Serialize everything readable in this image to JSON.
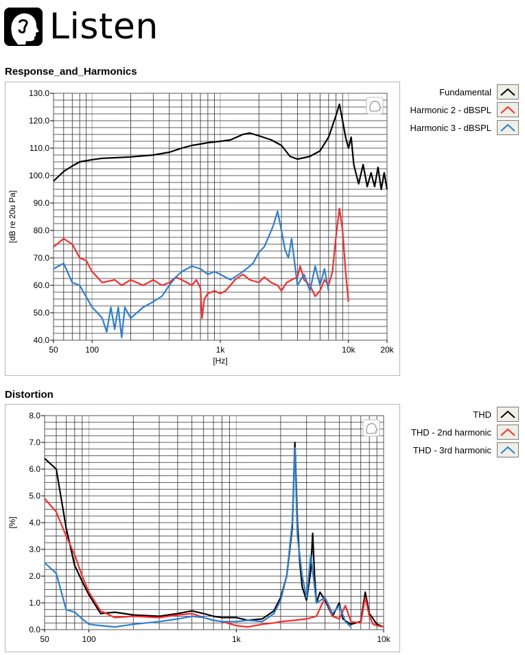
{
  "brand": {
    "name": "Listen"
  },
  "charts": [
    {
      "section_title": "Response_and_Harmonics",
      "legend": [
        {
          "label": "Fundamental",
          "color": "#000000"
        },
        {
          "label": "Harmonic 2 - dBSPL",
          "color": "#ff2a2a"
        },
        {
          "label": "Harmonic 3 - dBSPL",
          "color": "#2a7fd4"
        }
      ]
    },
    {
      "section_title": "Distortion",
      "legend": [
        {
          "label": "THD",
          "color": "#000000"
        },
        {
          "label": "THD - 2nd harmonic",
          "color": "#ff2a2a"
        },
        {
          "label": "THD - 3rd harmonic",
          "color": "#2a7fd4"
        }
      ]
    }
  ],
  "chart_data": [
    {
      "type": "line",
      "title": "Response_and_Harmonics",
      "xlabel": "[Hz]",
      "ylabel": "[dB re 20u Pa]",
      "xscale": "log",
      "xlim": [
        50,
        20000
      ],
      "ylim": [
        40,
        130
      ],
      "xticks": [
        50,
        100,
        1000,
        10000,
        20000
      ],
      "xtick_labels": [
        "50",
        "100",
        "1k",
        "10k",
        "20k"
      ],
      "yticks": [
        40,
        50,
        60,
        70,
        80,
        90,
        100,
        110,
        120,
        130
      ],
      "ytick_labels": [
        "40.0",
        "50.0",
        "60.0",
        "70.0",
        "80.0",
        "90.0",
        "100.0",
        "110.0",
        "120.0",
        "130.0"
      ],
      "grid": true,
      "legend_position": "right",
      "series": [
        {
          "name": "Fundamental",
          "color": "#000000",
          "x": [
            50,
            60,
            70,
            80,
            100,
            120,
            150,
            200,
            300,
            400,
            500,
            600,
            700,
            800,
            1000,
            1200,
            1500,
            1700,
            2000,
            2500,
            3000,
            3500,
            4000,
            4500,
            5000,
            6000,
            7000,
            8000,
            8500,
            9000,
            9500,
            10000,
            10500,
            11000,
            12000,
            13000,
            14000,
            15000,
            16000,
            17000,
            18000,
            19000,
            20000
          ],
          "y": [
            98,
            101.5,
            103.5,
            105,
            105.8,
            106.3,
            106.5,
            106.8,
            107.5,
            108.5,
            110,
            111,
            111.5,
            112,
            112.5,
            113,
            115,
            115.5,
            114.5,
            113,
            111,
            107,
            106,
            106.5,
            107,
            109,
            114,
            122,
            126,
            120,
            114,
            110,
            114,
            104,
            97,
            104,
            96,
            101,
            96,
            103,
            95,
            101,
            95
          ]
        },
        {
          "name": "Harmonic 2 - dBSPL",
          "color": "#ff2a2a",
          "x": [
            50,
            60,
            70,
            80,
            90,
            100,
            120,
            150,
            170,
            200,
            250,
            300,
            350,
            400,
            450,
            500,
            550,
            600,
            650,
            700,
            720,
            750,
            800,
            900,
            1000,
            1100,
            1200,
            1300,
            1500,
            1700,
            2000,
            2200,
            2500,
            2800,
            3000,
            3300,
            3600,
            4000,
            4200,
            4500,
            5000,
            5500,
            6000,
            6500,
            7000,
            7500,
            8000,
            8500,
            9000,
            9500,
            10000
          ],
          "y": [
            74,
            77,
            75,
            70,
            69,
            65,
            61,
            62,
            60,
            62,
            60,
            62,
            60,
            61,
            63,
            62,
            61,
            60,
            62,
            59,
            48,
            55,
            57,
            58,
            57,
            58,
            60,
            62,
            64,
            62,
            61,
            63,
            61,
            60,
            58,
            61,
            62,
            63,
            67,
            62,
            60,
            56,
            58,
            62,
            60,
            65,
            78,
            88,
            80,
            65,
            54
          ]
        },
        {
          "name": "Harmonic 3 - dBSPL",
          "color": "#2a7fd4",
          "x": [
            50,
            60,
            70,
            80,
            100,
            110,
            120,
            130,
            140,
            150,
            160,
            170,
            180,
            200,
            250,
            300,
            350,
            400,
            450,
            500,
            600,
            700,
            800,
            900,
            1000,
            1200,
            1400,
            1600,
            1800,
            2000,
            2200,
            2400,
            2600,
            2800,
            3000,
            3200,
            3400,
            3600,
            4000,
            4500,
            5000,
            5500,
            6000,
            6500,
            7000
          ],
          "y": [
            66,
            68,
            61,
            60,
            52,
            50,
            48,
            43,
            52,
            44,
            52,
            41,
            52,
            48,
            52,
            54,
            56,
            60,
            63,
            65,
            67,
            66,
            64,
            65,
            64,
            62,
            64,
            66,
            68,
            72,
            74,
            78,
            82,
            87,
            80,
            73,
            70,
            77,
            60,
            64,
            58,
            67,
            60,
            66,
            58
          ]
        }
      ]
    },
    {
      "type": "line",
      "title": "Distortion",
      "xlabel": "",
      "ylabel": "[%]",
      "xscale": "log",
      "xlim": [
        50,
        10000
      ],
      "ylim": [
        0,
        8
      ],
      "xticks": [
        50,
        100,
        1000,
        10000
      ],
      "xtick_labels": [
        "50",
        "100",
        "1k",
        "10k"
      ],
      "yticks": [
        0,
        1,
        2,
        3,
        4,
        5,
        6,
        7,
        8
      ],
      "ytick_labels": [
        "0.0",
        "1.0",
        "2.0",
        "3.0",
        "4.0",
        "5.0",
        "6.0",
        "7.0",
        "8.0"
      ],
      "grid": true,
      "legend_position": "right",
      "series": [
        {
          "name": "THD",
          "color": "#000000",
          "x": [
            50,
            60,
            70,
            80,
            90,
            100,
            120,
            150,
            200,
            300,
            400,
            500,
            600,
            700,
            800,
            1000,
            1200,
            1500,
            1800,
            2000,
            2200,
            2400,
            2500,
            2600,
            2700,
            2800,
            3000,
            3200,
            3300,
            3400,
            3500,
            3700,
            4000,
            4500,
            5000,
            5300,
            5600,
            6000,
            7000,
            7500,
            8000,
            8500,
            9000,
            10000
          ],
          "y": [
            6.4,
            6.0,
            3.8,
            2.4,
            1.8,
            1.3,
            0.6,
            0.65,
            0.55,
            0.5,
            0.6,
            0.7,
            0.6,
            0.5,
            0.45,
            0.45,
            0.35,
            0.4,
            0.7,
            1.2,
            2.0,
            3.8,
            7.0,
            4.0,
            2.5,
            1.6,
            1.1,
            2.2,
            3.6,
            2.0,
            1.0,
            1.4,
            1.1,
            0.5,
            1.0,
            0.4,
            0.3,
            0.2,
            0.3,
            1.4,
            0.6,
            0.4,
            0.2,
            0.1
          ]
        },
        {
          "name": "THD - 2nd harmonic",
          "color": "#ff2a2a",
          "x": [
            50,
            60,
            70,
            80,
            90,
            100,
            120,
            150,
            200,
            300,
            400,
            500,
            600,
            700,
            800,
            1000,
            1200,
            1500,
            1800,
            2000,
            2500,
            3000,
            3500,
            4000,
            4500,
            5000,
            5500,
            6000,
            7000,
            7500,
            8000,
            8500,
            9000,
            10000
          ],
          "y": [
            4.9,
            4.4,
            3.5,
            2.8,
            2.0,
            1.4,
            0.7,
            0.45,
            0.5,
            0.45,
            0.55,
            0.6,
            0.45,
            0.35,
            0.3,
            0.15,
            0.1,
            0.2,
            0.25,
            0.3,
            0.35,
            0.4,
            0.5,
            1.2,
            0.5,
            0.4,
            0.9,
            0.3,
            0.25,
            1.2,
            0.5,
            0.2,
            0.15,
            0.1
          ]
        },
        {
          "name": "THD - 3rd harmonic",
          "color": "#2a7fd4",
          "x": [
            50,
            60,
            70,
            80,
            90,
            100,
            120,
            150,
            200,
            300,
            400,
            500,
            600,
            700,
            800,
            1000,
            1200,
            1500,
            1800,
            2000,
            2200,
            2400,
            2500,
            2600,
            2800,
            3000,
            3200,
            3500,
            4000,
            4500,
            5000,
            5500,
            6000
          ],
          "y": [
            2.5,
            2.1,
            0.75,
            0.65,
            0.4,
            0.2,
            0.15,
            0.1,
            0.2,
            0.3,
            0.4,
            0.5,
            0.45,
            0.35,
            0.3,
            0.3,
            0.35,
            0.3,
            0.6,
            1.1,
            2.0,
            4.0,
            6.8,
            3.5,
            2.0,
            1.2,
            2.8,
            1.0,
            1.2,
            0.6,
            0.9,
            0.3,
            0.1
          ]
        }
      ]
    }
  ]
}
